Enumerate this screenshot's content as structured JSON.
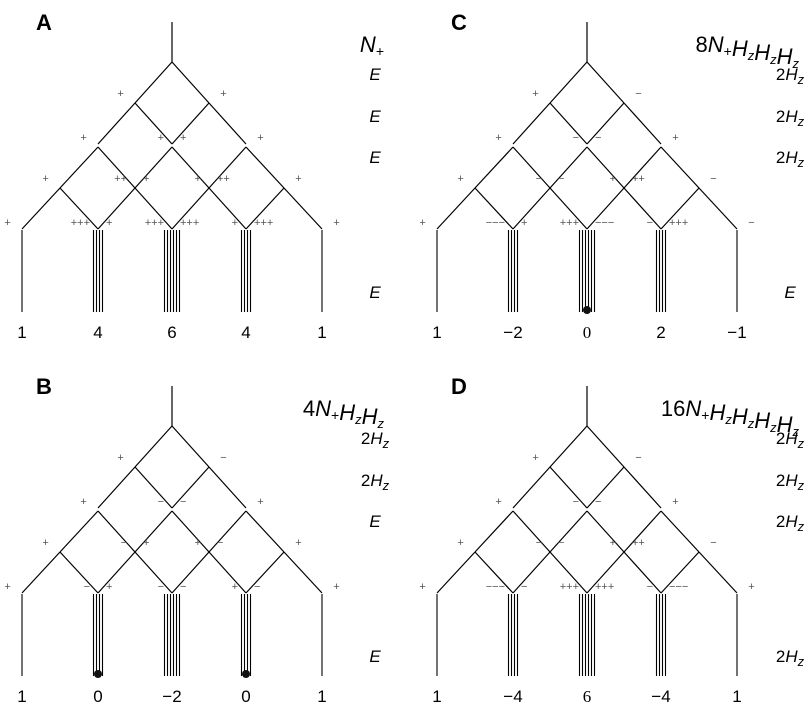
{
  "panels": [
    {
      "id": "A",
      "label": "A",
      "operator": {
        "prefix": "",
        "terms": [
          {
            "base": "N",
            "sub": "+"
          }
        ]
      },
      "row_labels": [
        "E",
        "E",
        "E",
        "E"
      ],
      "row_label_style": "E",
      "bottom_values": [
        "1",
        "4",
        "6",
        "4",
        "1"
      ],
      "dots": [],
      "signs": {
        "level1": [
          "+",
          "+"
        ],
        "level2": [
          "+",
          "+",
          "+",
          "+"
        ],
        "level3": [
          "+",
          "+",
          "++",
          "++",
          "+",
          "+"
        ],
        "level4": [
          "+",
          "+",
          "+++",
          "+++",
          "+++",
          "+++",
          "+",
          "+"
        ]
      }
    },
    {
      "id": "B",
      "label": "B",
      "operator": {
        "prefix": "4",
        "terms": [
          {
            "base": "N",
            "sub": "+"
          },
          {
            "base": "H",
            "sub": "z"
          },
          {
            "base": "H",
            "sub": "z"
          }
        ]
      },
      "row_labels": [
        "2Hz",
        "2Hz",
        "E",
        "E"
      ],
      "bottom_values": [
        "1",
        "0",
        "−2",
        "0",
        "1"
      ],
      "dots": [
        1,
        3
      ],
      "signs": {
        "level1": [
          "+",
          "−"
        ],
        "level2": [
          "+",
          "−",
          "−",
          "+"
        ],
        "level3": [
          "+",
          "+",
          "−",
          "−",
          "+",
          "+"
        ],
        "level4": [
          "+",
          "+",
          "−",
          "−",
          "−",
          "−",
          "+",
          "+"
        ]
      }
    },
    {
      "id": "C",
      "label": "C",
      "operator": {
        "prefix": "8",
        "terms": [
          {
            "base": "N",
            "sub": "+"
          },
          {
            "base": "H",
            "sub": "z"
          },
          {
            "base": "H",
            "sub": "z"
          },
          {
            "base": "H",
            "sub": "z"
          }
        ]
      },
      "row_labels": [
        "2Hz",
        "2Hz",
        "2Hz",
        "E"
      ],
      "bottom_values": [
        "1",
        "−2",
        "0",
        "2",
        "−1"
      ],
      "dots": [
        2
      ],
      "signs": {
        "level1": [
          "+",
          "−"
        ],
        "level2": [
          "+",
          "−",
          "−",
          "+"
        ],
        "level3": [
          "+",
          "−",
          "−",
          "++",
          "+",
          "−"
        ],
        "level4": [
          "+",
          "+",
          "−−−",
          "−−−",
          "+++",
          "+++",
          "−",
          "−"
        ]
      }
    },
    {
      "id": "D",
      "label": "D",
      "operator": {
        "prefix": "16",
        "terms": [
          {
            "base": "N",
            "sub": "+"
          },
          {
            "base": "H",
            "sub": "z"
          },
          {
            "base": "H",
            "sub": "z"
          },
          {
            "base": "H",
            "sub": "z"
          },
          {
            "base": "H",
            "sub": "z"
          }
        ]
      },
      "row_labels": [
        "2Hz",
        "2Hz",
        "2Hz",
        "2Hz"
      ],
      "bottom_values": [
        "1",
        "−4",
        "6",
        "−4",
        "1"
      ],
      "dots": [],
      "signs": {
        "level1": [
          "+",
          "−"
        ],
        "level2": [
          "+",
          "−",
          "−",
          "+"
        ],
        "level3": [
          "+",
          "−",
          "−",
          "++",
          "+",
          "−"
        ],
        "level4": [
          "+",
          "−",
          "−−−",
          "+++",
          "+++",
          "−−−",
          "−",
          "+"
        ]
      }
    }
  ]
}
